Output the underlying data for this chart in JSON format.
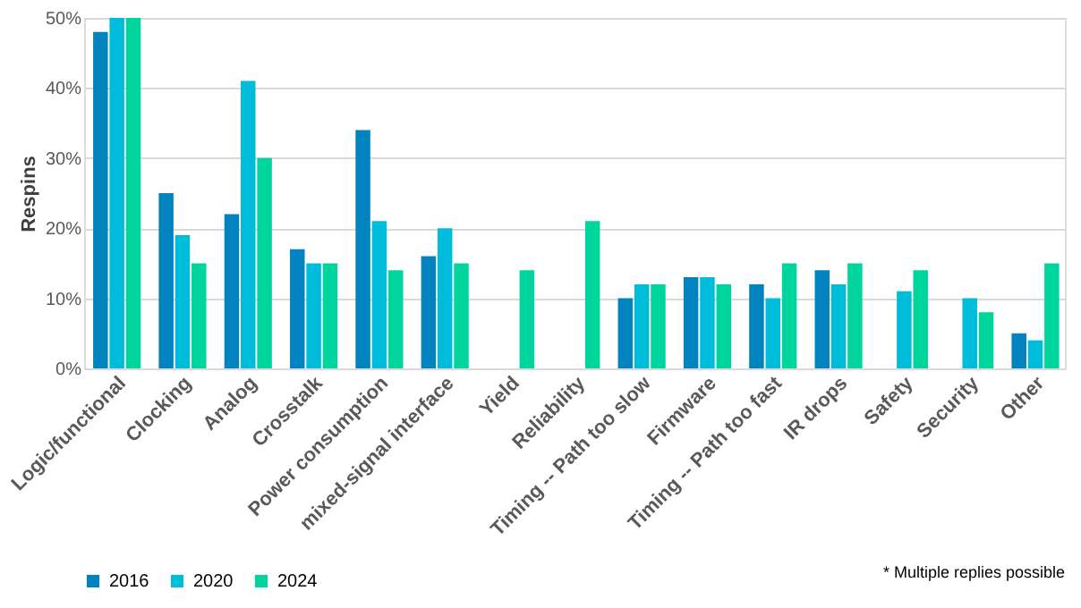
{
  "chart_data": {
    "type": "bar",
    "ylabel": "Respins",
    "categories": [
      "Logic/functional",
      "Clocking",
      "Analog",
      "Crosstalk",
      "Power consumption",
      "mixed-signal interface",
      "Yield",
      "Reliability",
      "Timing -- Path too slow",
      "Firmware",
      "Timing -- Path too fast",
      "IR drops",
      "Safety",
      "Security",
      "Other"
    ],
    "series": [
      {
        "name": "2016",
        "color": "#0083be",
        "values": [
          48,
          25,
          22,
          17,
          34,
          16,
          null,
          null,
          10,
          13,
          12,
          14,
          null,
          null,
          5
        ]
      },
      {
        "name": "2020",
        "color": "#00bcdb",
        "values": [
          50,
          19,
          41,
          15,
          21,
          20,
          null,
          null,
          12,
          13,
          10,
          12,
          11,
          10,
          4
        ]
      },
      {
        "name": "2024",
        "color": "#00d59e",
        "values": [
          50,
          15,
          30,
          15,
          14,
          15,
          14,
          21,
          12,
          12,
          15,
          15,
          14,
          8,
          15
        ]
      }
    ],
    "ylim": [
      0,
      50
    ],
    "yticks": [
      {
        "value": 0,
        "label": "0%"
      },
      {
        "value": 10,
        "label": "10%"
      },
      {
        "value": 20,
        "label": "20%"
      },
      {
        "value": 30,
        "label": "30%"
      },
      {
        "value": 40,
        "label": "40%"
      },
      {
        "value": 50,
        "label": "50%"
      }
    ],
    "grid": "y",
    "legend": "bottom",
    "annotations": [
      "* Multiple replies possible"
    ]
  }
}
